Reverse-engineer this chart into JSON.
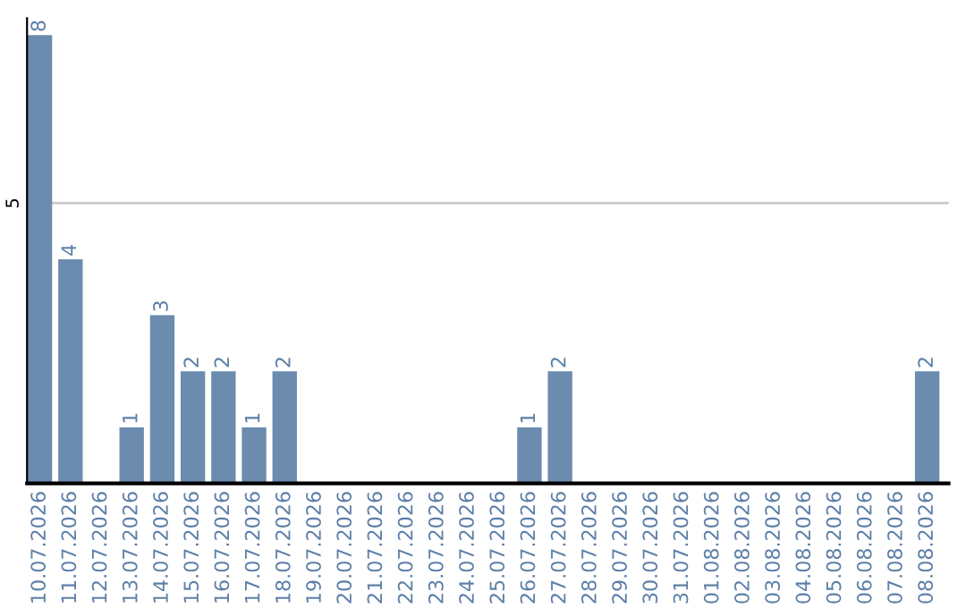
{
  "chart_data": {
    "type": "bar",
    "categories": [
      "10.07.2026",
      "11.07.2026",
      "12.07.2026",
      "13.07.2026",
      "14.07.2026",
      "15.07.2026",
      "16.07.2026",
      "17.07.2026",
      "18.07.2026",
      "19.07.2026",
      "20.07.2026",
      "21.07.2026",
      "22.07.2026",
      "23.07.2026",
      "24.07.2026",
      "25.07.2026",
      "26.07.2026",
      "27.07.2026",
      "28.07.2026",
      "29.07.2026",
      "30.07.2026",
      "31.07.2026",
      "01.08.2026",
      "02.08.2026",
      "03.08.2026",
      "04.08.2026",
      "05.08.2026",
      "06.08.2026",
      "07.08.2026",
      "08.08.2026"
    ],
    "values": [
      8,
      4,
      0,
      1,
      3,
      2,
      2,
      1,
      2,
      0,
      0,
      0,
      0,
      0,
      0,
      0,
      1,
      2,
      0,
      0,
      0,
      0,
      0,
      0,
      0,
      0,
      0,
      0,
      0,
      2
    ],
    "value_labels": [
      "8",
      "4",
      null,
      "1",
      "3",
      "2",
      "2",
      "1",
      "2",
      null,
      null,
      null,
      null,
      null,
      null,
      null,
      "1",
      "2",
      null,
      null,
      null,
      null,
      null,
      null,
      null,
      null,
      null,
      null,
      null,
      "2"
    ],
    "color": "#6b8cae",
    "ylim": [
      0,
      8.3
    ],
    "yticks": [
      5
    ],
    "grid": "y"
  }
}
